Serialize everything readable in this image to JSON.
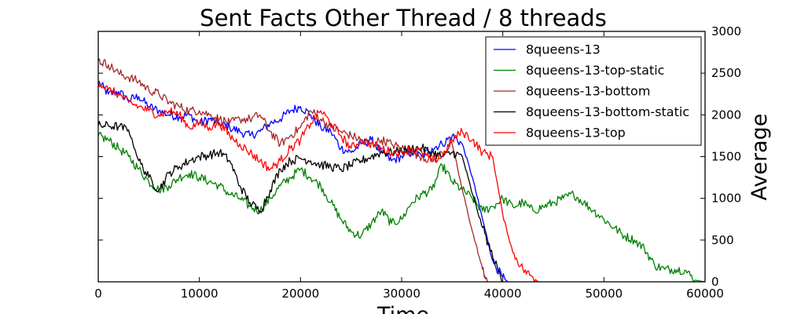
{
  "chart_data": {
    "type": "line",
    "title": "Sent Facts Other Thread / 8 threads",
    "xlabel": "Time",
    "ylabel": "Average",
    "xlim": [
      0,
      60000
    ],
    "ylim": [
      0,
      3000
    ],
    "x_ticks": [
      "0",
      "10000",
      "20000",
      "30000",
      "40000",
      "50000",
      "60000"
    ],
    "y_ticks": [
      "0",
      "500",
      "1000",
      "1500",
      "2000",
      "2500",
      "3000"
    ],
    "y_axis_side": "right",
    "grid": false,
    "legend_position": "top-right",
    "series": [
      {
        "name": "8queens-13",
        "color": "#0000ff",
        "points": [
          [
            0,
            2400
          ],
          [
            1000,
            2250
          ],
          [
            2000,
            2280
          ],
          [
            3000,
            2180
          ],
          [
            4000,
            2220
          ],
          [
            5000,
            2100
          ],
          [
            6000,
            2050
          ],
          [
            7000,
            2000
          ],
          [
            8000,
            1980
          ],
          [
            9000,
            2000
          ],
          [
            10000,
            1900
          ],
          [
            11000,
            1950
          ],
          [
            12000,
            1900
          ],
          [
            13000,
            1850
          ],
          [
            14000,
            1800
          ],
          [
            15000,
            1750
          ],
          [
            16000,
            1800
          ],
          [
            17000,
            1900
          ],
          [
            18000,
            1950
          ],
          [
            19000,
            2050
          ],
          [
            20000,
            2100
          ],
          [
            21000,
            2000
          ],
          [
            22000,
            1850
          ],
          [
            23000,
            1800
          ],
          [
            24000,
            1600
          ],
          [
            25000,
            1550
          ],
          [
            26000,
            1650
          ],
          [
            27000,
            1700
          ],
          [
            28000,
            1550
          ],
          [
            29000,
            1450
          ],
          [
            30000,
            1500
          ],
          [
            31000,
            1550
          ],
          [
            32000,
            1500
          ],
          [
            33000,
            1600
          ],
          [
            34000,
            1650
          ],
          [
            35000,
            1750
          ],
          [
            36000,
            1650
          ],
          [
            37000,
            1250
          ],
          [
            38000,
            750
          ],
          [
            39000,
            250
          ],
          [
            40000,
            50
          ],
          [
            40500,
            0
          ]
        ]
      },
      {
        "name": "8queens-13-top-static",
        "color": "#008000",
        "points": [
          [
            0,
            1750
          ],
          [
            1000,
            1700
          ],
          [
            2000,
            1600
          ],
          [
            3000,
            1500
          ],
          [
            4000,
            1350
          ],
          [
            5000,
            1200
          ],
          [
            6000,
            1100
          ],
          [
            7000,
            1150
          ],
          [
            8000,
            1250
          ],
          [
            9000,
            1300
          ],
          [
            10000,
            1250
          ],
          [
            11000,
            1200
          ],
          [
            12000,
            1150
          ],
          [
            13000,
            1050
          ],
          [
            14000,
            1000
          ],
          [
            15000,
            900
          ],
          [
            16000,
            850
          ],
          [
            17000,
            1000
          ],
          [
            18000,
            1150
          ],
          [
            19000,
            1250
          ],
          [
            20000,
            1350
          ],
          [
            21000,
            1250
          ],
          [
            22000,
            1150
          ],
          [
            23000,
            950
          ],
          [
            24000,
            750
          ],
          [
            25000,
            600
          ],
          [
            26000,
            550
          ],
          [
            27000,
            700
          ],
          [
            28000,
            850
          ],
          [
            29000,
            700
          ],
          [
            30000,
            750
          ],
          [
            31000,
            950
          ],
          [
            32000,
            1050
          ],
          [
            33000,
            1100
          ],
          [
            34000,
            1400
          ],
          [
            35000,
            1200
          ],
          [
            36000,
            1100
          ],
          [
            37000,
            1000
          ],
          [
            38000,
            850
          ],
          [
            39000,
            900
          ],
          [
            40000,
            1000
          ],
          [
            41000,
            900
          ],
          [
            42000,
            950
          ],
          [
            43000,
            850
          ],
          [
            44000,
            900
          ],
          [
            45000,
            950
          ],
          [
            46000,
            1000
          ],
          [
            47000,
            1050
          ],
          [
            48000,
            950
          ],
          [
            49000,
            850
          ],
          [
            50000,
            750
          ],
          [
            51000,
            650
          ],
          [
            52000,
            550
          ],
          [
            53000,
            500
          ],
          [
            54000,
            400
          ],
          [
            55000,
            200
          ],
          [
            56000,
            150
          ],
          [
            57000,
            150
          ],
          [
            58000,
            140
          ],
          [
            59000,
            20
          ],
          [
            60000,
            0
          ]
        ]
      },
      {
        "name": "8queens-13-bottom",
        "color": "#a52a2a",
        "points": [
          [
            0,
            2650
          ],
          [
            1000,
            2600
          ],
          [
            2000,
            2500
          ],
          [
            3000,
            2450
          ],
          [
            4000,
            2400
          ],
          [
            5000,
            2300
          ],
          [
            6000,
            2250
          ],
          [
            7000,
            2150
          ],
          [
            8000,
            2100
          ],
          [
            9000,
            2050
          ],
          [
            10000,
            2050
          ],
          [
            11000,
            2000
          ],
          [
            12000,
            1950
          ],
          [
            13000,
            1900
          ],
          [
            14000,
            1950
          ],
          [
            15000,
            1950
          ],
          [
            16000,
            2000
          ],
          [
            17000,
            1800
          ],
          [
            18000,
            1650
          ],
          [
            19000,
            1750
          ],
          [
            20000,
            1850
          ],
          [
            21000,
            2050
          ],
          [
            22000,
            1950
          ],
          [
            23000,
            1850
          ],
          [
            24000,
            1800
          ],
          [
            25000,
            1750
          ],
          [
            26000,
            1700
          ],
          [
            27000,
            1650
          ],
          [
            28000,
            1700
          ],
          [
            29000,
            1650
          ],
          [
            30000,
            1600
          ],
          [
            31000,
            1550
          ],
          [
            32000,
            1500
          ],
          [
            33000,
            1450
          ],
          [
            34000,
            1550
          ],
          [
            35000,
            1650
          ],
          [
            36000,
            1100
          ],
          [
            37000,
            600
          ],
          [
            38000,
            150
          ],
          [
            38500,
            0
          ]
        ]
      },
      {
        "name": "8queens-13-bottom-static",
        "color": "#000000",
        "points": [
          [
            0,
            1870
          ],
          [
            1000,
            1870
          ],
          [
            2000,
            1860
          ],
          [
            3000,
            1820
          ],
          [
            4000,
            1450
          ],
          [
            5000,
            1250
          ],
          [
            6000,
            1100
          ],
          [
            7000,
            1300
          ],
          [
            8000,
            1380
          ],
          [
            9000,
            1450
          ],
          [
            10000,
            1500
          ],
          [
            11000,
            1520
          ],
          [
            12000,
            1550
          ],
          [
            13000,
            1450
          ],
          [
            14000,
            1150
          ],
          [
            15000,
            950
          ],
          [
            16000,
            850
          ],
          [
            17000,
            1100
          ],
          [
            18000,
            1350
          ],
          [
            19000,
            1450
          ],
          [
            20000,
            1480
          ],
          [
            21000,
            1450
          ],
          [
            22000,
            1400
          ],
          [
            23000,
            1380
          ],
          [
            24000,
            1350
          ],
          [
            25000,
            1400
          ],
          [
            26000,
            1450
          ],
          [
            27000,
            1500
          ],
          [
            28000,
            1550
          ],
          [
            29000,
            1550
          ],
          [
            30000,
            1570
          ],
          [
            31000,
            1600
          ],
          [
            32000,
            1600
          ],
          [
            33000,
            1550
          ],
          [
            34000,
            1500
          ],
          [
            35000,
            1550
          ],
          [
            36000,
            1500
          ],
          [
            37000,
            1050
          ],
          [
            38000,
            650
          ],
          [
            39000,
            300
          ],
          [
            40000,
            0
          ]
        ]
      },
      {
        "name": "8queens-13-top",
        "color": "#ff0000",
        "points": [
          [
            0,
            2400
          ],
          [
            1000,
            2300
          ],
          [
            2000,
            2250
          ],
          [
            3000,
            2150
          ],
          [
            4000,
            2100
          ],
          [
            5000,
            2050
          ],
          [
            6000,
            2000
          ],
          [
            7000,
            2050
          ],
          [
            8000,
            2000
          ],
          [
            9000,
            1850
          ],
          [
            10000,
            1900
          ],
          [
            11000,
            1850
          ],
          [
            12000,
            1900
          ],
          [
            13000,
            1750
          ],
          [
            14000,
            1650
          ],
          [
            15000,
            1550
          ],
          [
            16000,
            1450
          ],
          [
            17000,
            1350
          ],
          [
            18000,
            1450
          ],
          [
            19000,
            1600
          ],
          [
            20000,
            1700
          ],
          [
            21000,
            1900
          ],
          [
            22000,
            2050
          ],
          [
            23000,
            1900
          ],
          [
            24000,
            1750
          ],
          [
            25000,
            1600
          ],
          [
            26000,
            1700
          ],
          [
            27000,
            1650
          ],
          [
            28000,
            1600
          ],
          [
            29000,
            1550
          ],
          [
            30000,
            1550
          ],
          [
            31000,
            1600
          ],
          [
            32000,
            1550
          ],
          [
            33000,
            1450
          ],
          [
            34000,
            1500
          ],
          [
            35000,
            1700
          ],
          [
            36000,
            1800
          ],
          [
            37000,
            1700
          ],
          [
            38000,
            1550
          ],
          [
            39000,
            1500
          ],
          [
            40000,
            800
          ],
          [
            41000,
            350
          ],
          [
            42000,
            150
          ],
          [
            43000,
            50
          ],
          [
            43500,
            0
          ]
        ]
      }
    ]
  }
}
